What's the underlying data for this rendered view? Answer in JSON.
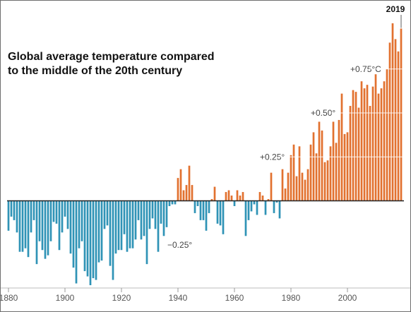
{
  "chart_data": {
    "type": "bar",
    "title_lines": [
      "Global average temperature compared",
      "to the middle of the 20th century"
    ],
    "x_range": [
      1880,
      2019
    ],
    "ylim": [
      -0.5,
      1.0
    ],
    "x_ticks": [
      {
        "year": 1880,
        "label": "1880"
      },
      {
        "year": 1900,
        "label": "1900"
      },
      {
        "year": 1920,
        "label": "1920"
      },
      {
        "year": 1940,
        "label": "1940"
      },
      {
        "year": 1960,
        "label": "1960"
      },
      {
        "year": 1980,
        "label": "1980"
      },
      {
        "year": 2000,
        "label": "2000"
      }
    ],
    "reference_lines": [
      {
        "value": -0.25,
        "label": "−0.25°",
        "label_year": 1935
      },
      {
        "value": 0.25,
        "label": "+0.25°",
        "label_year": 1969
      },
      {
        "value": 0.5,
        "label": "+0.50°",
        "label_year": 1987
      },
      {
        "value": 0.75,
        "label": "+0.75°C",
        "label_year": 2001
      }
    ],
    "highlight": {
      "year": 2019,
      "label": "2019"
    },
    "colors": {
      "positive": "#e2712f",
      "negative": "#2f93b6",
      "baseline": "#222222",
      "axis": "#bbbbbb",
      "gridline": "#ffffff"
    },
    "series": [
      {
        "years": [
          1880,
          1881,
          1882,
          1883,
          1884,
          1885,
          1886,
          1887,
          1888,
          1889,
          1890,
          1891,
          1892,
          1893,
          1894,
          1895,
          1896,
          1897,
          1898,
          1899,
          1900,
          1901,
          1902,
          1903,
          1904,
          1905,
          1906,
          1907,
          1908,
          1909,
          1910,
          1911,
          1912,
          1913,
          1914,
          1915,
          1916,
          1917,
          1918,
          1919,
          1920,
          1921,
          1922,
          1923,
          1924,
          1925,
          1926,
          1927,
          1928,
          1929,
          1930,
          1931,
          1932,
          1933,
          1934,
          1935,
          1936,
          1937,
          1938,
          1939,
          1940,
          1941,
          1942,
          1943,
          1944,
          1945,
          1946,
          1947,
          1948,
          1949,
          1950,
          1951,
          1952,
          1953,
          1954,
          1955,
          1956,
          1957,
          1958,
          1959,
          1960,
          1961,
          1962,
          1963,
          1964,
          1965,
          1966,
          1967,
          1968,
          1969,
          1970,
          1971,
          1972,
          1973,
          1974,
          1975,
          1976,
          1977,
          1978,
          1979,
          1980,
          1981,
          1982,
          1983,
          1984,
          1985,
          1986,
          1987,
          1988,
          1989,
          1990,
          1991,
          1992,
          1993,
          1994,
          1995,
          1996,
          1997,
          1998,
          1999,
          2000,
          2001,
          2002,
          2003,
          2004,
          2005,
          2006,
          2007,
          2008,
          2009,
          2010,
          2011,
          2012,
          2013,
          2014,
          2015,
          2016,
          2017,
          2018,
          2019
        ],
        "values": [
          -0.17,
          -0.09,
          -0.11,
          -0.18,
          -0.29,
          -0.29,
          -0.27,
          -0.32,
          -0.18,
          -0.11,
          -0.36,
          -0.23,
          -0.28,
          -0.33,
          -0.31,
          -0.23,
          -0.12,
          -0.13,
          -0.28,
          -0.18,
          -0.09,
          -0.16,
          -0.3,
          -0.38,
          -0.47,
          -0.27,
          -0.23,
          -0.4,
          -0.43,
          -0.48,
          -0.44,
          -0.45,
          -0.35,
          -0.34,
          -0.16,
          -0.14,
          -0.37,
          -0.45,
          -0.3,
          -0.28,
          -0.28,
          -0.19,
          -0.29,
          -0.27,
          -0.27,
          -0.22,
          -0.11,
          -0.22,
          -0.2,
          -0.36,
          -0.16,
          -0.1,
          -0.16,
          -0.29,
          -0.13,
          -0.2,
          -0.15,
          -0.03,
          -0.02,
          -0.02,
          0.13,
          0.18,
          0.06,
          0.09,
          0.2,
          0.09,
          -0.07,
          -0.03,
          -0.11,
          -0.11,
          -0.17,
          -0.07,
          0.01,
          0.08,
          -0.13,
          -0.14,
          -0.19,
          0.05,
          0.06,
          0.03,
          -0.03,
          0.06,
          0.03,
          0.05,
          -0.2,
          -0.11,
          -0.06,
          -0.02,
          -0.08,
          0.05,
          0.03,
          -0.08,
          0.01,
          0.16,
          -0.07,
          -0.01,
          -0.1,
          0.18,
          0.07,
          0.16,
          0.26,
          0.32,
          0.14,
          0.31,
          0.16,
          0.12,
          0.18,
          0.32,
          0.39,
          0.27,
          0.45,
          0.4,
          0.22,
          0.23,
          0.31,
          0.45,
          0.33,
          0.46,
          0.61,
          0.38,
          0.39,
          0.54,
          0.63,
          0.62,
          0.53,
          0.68,
          0.64,
          0.66,
          0.54,
          0.65,
          0.72,
          0.61,
          0.64,
          0.68,
          0.75,
          0.9,
          1.01,
          0.92,
          0.85,
          0.98
        ]
      }
    ]
  }
}
